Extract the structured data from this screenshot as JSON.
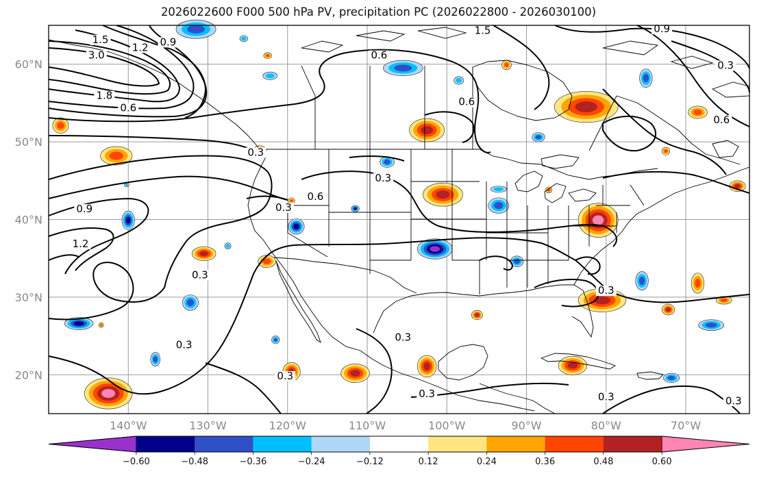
{
  "title": "2026022600 F000 500 hPa PV, precipitation PC (2026022800 - 2026030100)",
  "map": {
    "lon_range": [
      -150,
      -62
    ],
    "lat_range": [
      15,
      65
    ],
    "lat_ticks": [
      {
        "value": 60,
        "label": "60°N"
      },
      {
        "value": 50,
        "label": "50°N"
      },
      {
        "value": 40,
        "label": "40°N"
      },
      {
        "value": 30,
        "label": "30°N"
      },
      {
        "value": 20,
        "label": "20°N"
      }
    ],
    "lon_ticks": [
      {
        "value": -140,
        "label": "140°W"
      },
      {
        "value": -130,
        "label": "130°W"
      },
      {
        "value": -120,
        "label": "120°W"
      },
      {
        "value": -110,
        "label": "110°W"
      },
      {
        "value": -100,
        "label": "100°W"
      },
      {
        "value": -90,
        "label": "90°W"
      },
      {
        "value": -80,
        "label": "80°W"
      },
      {
        "value": -70,
        "label": "70°W"
      }
    ],
    "contour_labels": [
      {
        "text": "1.5",
        "lon": -143.5,
        "lat": 62.8
      },
      {
        "text": "1.2",
        "lon": -138.5,
        "lat": 61.8
      },
      {
        "text": "0.9",
        "lon": -135,
        "lat": 62.5
      },
      {
        "text": "3.0",
        "lon": -144,
        "lat": 60.8
      },
      {
        "text": "1.8",
        "lon": -143,
        "lat": 55.6
      },
      {
        "text": "0.6",
        "lon": -140,
        "lat": 54
      },
      {
        "text": "0.3",
        "lon": -124,
        "lat": 48.3
      },
      {
        "text": "0.6",
        "lon": -116.5,
        "lat": 42.6
      },
      {
        "text": "0.3",
        "lon": -120.5,
        "lat": 41.2
      },
      {
        "text": "0.9",
        "lon": -145.5,
        "lat": 41
      },
      {
        "text": "1.2",
        "lon": -146,
        "lat": 36.5
      },
      {
        "text": "0.3",
        "lon": -131,
        "lat": 32.5
      },
      {
        "text": "0.3",
        "lon": -133,
        "lat": 23.5
      },
      {
        "text": "0.3",
        "lon": -120.3,
        "lat": 19.5
      },
      {
        "text": "0.6",
        "lon": -108.5,
        "lat": 60.8
      },
      {
        "text": "1.5",
        "lon": -95.5,
        "lat": 64
      },
      {
        "text": "0.9",
        "lon": -73,
        "lat": 64.2
      },
      {
        "text": "0.3",
        "lon": -65,
        "lat": 59.5
      },
      {
        "text": "0.6",
        "lon": -97.5,
        "lat": 54.8
      },
      {
        "text": "0.3",
        "lon": -108,
        "lat": 45
      },
      {
        "text": "0.6",
        "lon": -65.5,
        "lat": 52.5
      },
      {
        "text": "0.3",
        "lon": -80,
        "lat": 30.5
      },
      {
        "text": "0.3",
        "lon": -105.5,
        "lat": 24.5
      },
      {
        "text": "0.3",
        "lon": -102.5,
        "lat": 17.2
      },
      {
        "text": "0.3",
        "lon": -80,
        "lat": 16.8
      },
      {
        "text": "0.3",
        "lon": -64,
        "lat": 16.3
      }
    ],
    "anomaly_blobs": [
      {
        "lon": -142.5,
        "lat": 17.6,
        "rlon": 3.0,
        "rlat": 2.0,
        "value": 0.6
      },
      {
        "lon": -148.5,
        "lat": 52.1,
        "rlon": 1.0,
        "rlat": 1.0,
        "value": 0.36
      },
      {
        "lon": -141.5,
        "lat": 48.2,
        "rlon": 2.0,
        "rlat": 1.2,
        "value": 0.36
      },
      {
        "lon": -131.5,
        "lat": 64.5,
        "rlon": 2.5,
        "rlat": 1.2,
        "value": -0.36
      },
      {
        "lon": -125.5,
        "lat": 63.3,
        "rlon": 0.5,
        "rlat": 0.4,
        "value": -0.24
      },
      {
        "lon": -122.5,
        "lat": 61.1,
        "rlon": 0.5,
        "rlat": 0.4,
        "value": 0.36
      },
      {
        "lon": -122.2,
        "lat": 58.5,
        "rlon": 0.9,
        "rlat": 0.5,
        "value": -0.24
      },
      {
        "lon": -105.5,
        "lat": 59.5,
        "rlon": 2.5,
        "rlat": 1.0,
        "value": -0.36
      },
      {
        "lon": -98.5,
        "lat": 57.9,
        "rlon": 0.6,
        "rlat": 0.5,
        "value": -0.24
      },
      {
        "lon": -92.5,
        "lat": 59.9,
        "rlon": 0.6,
        "rlat": 0.6,
        "value": 0.36
      },
      {
        "lon": -75,
        "lat": 58.2,
        "rlon": 0.8,
        "rlat": 1.2,
        "value": -0.36
      },
      {
        "lon": -68.5,
        "lat": 53.8,
        "rlon": 1.2,
        "rlat": 0.8,
        "value": 0.36
      },
      {
        "lon": -82.5,
        "lat": 54.5,
        "rlon": 4.0,
        "rlat": 2.0,
        "value": 0.48
      },
      {
        "lon": -102.5,
        "lat": 51.5,
        "rlon": 2.2,
        "rlat": 1.5,
        "value": 0.48
      },
      {
        "lon": -88.5,
        "lat": 50.6,
        "rlon": 0.8,
        "rlat": 0.6,
        "value": -0.36
      },
      {
        "lon": -72.5,
        "lat": 48.8,
        "rlon": 0.5,
        "rlat": 0.5,
        "value": 0.36
      },
      {
        "lon": -123.5,
        "lat": 48.9,
        "rlon": 0.8,
        "rlat": 0.6,
        "value": 0.36
      },
      {
        "lon": -107.5,
        "lat": 47.4,
        "rlon": 0.9,
        "rlat": 0.7,
        "value": -0.36
      },
      {
        "lon": -100.5,
        "lat": 43.2,
        "rlon": 2.5,
        "rlat": 1.5,
        "value": 0.48
      },
      {
        "lon": -93.5,
        "lat": 41.8,
        "rlon": 1.3,
        "rlat": 1.0,
        "value": -0.36
      },
      {
        "lon": -93.5,
        "lat": 43.9,
        "rlon": 1.0,
        "rlat": 0.4,
        "value": -0.24
      },
      {
        "lon": -63.5,
        "lat": 44.3,
        "rlon": 1.0,
        "rlat": 0.7,
        "value": 0.48
      },
      {
        "lon": -87.2,
        "lat": 43.8,
        "rlon": 0.4,
        "rlat": 0.4,
        "value": 0.36
      },
      {
        "lon": -81,
        "lat": 39.9,
        "rlon": 2.5,
        "rlat": 2.2,
        "value": 0.6
      },
      {
        "lon": -140,
        "lat": 39.9,
        "rlon": 0.8,
        "rlat": 1.2,
        "value": -0.48
      },
      {
        "lon": -146.2,
        "lat": 26.6,
        "rlon": 1.8,
        "rlat": 0.8,
        "value": -0.48
      },
      {
        "lon": -118.9,
        "lat": 39.1,
        "rlon": 1.0,
        "rlat": 1.0,
        "value": -0.48
      },
      {
        "lon": -111.5,
        "lat": 41.4,
        "rlon": 0.5,
        "rlat": 0.4,
        "value": -0.48
      },
      {
        "lon": -119.5,
        "lat": 42.4,
        "rlon": 0.4,
        "rlat": 0.4,
        "value": 0.36
      },
      {
        "lon": -101.5,
        "lat": 36.2,
        "rlon": 2.2,
        "rlat": 1.3,
        "value": -0.6
      },
      {
        "lon": -91.2,
        "lat": 34.6,
        "rlon": 0.8,
        "rlat": 0.7,
        "value": -0.36
      },
      {
        "lon": -122.6,
        "lat": 34.6,
        "rlon": 1.1,
        "rlat": 0.8,
        "value": 0.36
      },
      {
        "lon": -130.5,
        "lat": 35.6,
        "rlon": 1.5,
        "rlat": 0.9,
        "value": 0.48
      },
      {
        "lon": -132.2,
        "lat": 29.3,
        "rlon": 1.0,
        "rlat": 1.0,
        "value": -0.36
      },
      {
        "lon": -80.5,
        "lat": 29.6,
        "rlon": 3.0,
        "rlat": 1.5,
        "value": 0.48
      },
      {
        "lon": -75.5,
        "lat": 32.1,
        "rlon": 0.8,
        "rlat": 1.2,
        "value": -0.36
      },
      {
        "lon": -68.5,
        "lat": 31.8,
        "rlon": 0.8,
        "rlat": 1.3,
        "value": 0.36
      },
      {
        "lon": -65.2,
        "lat": 29.6,
        "rlon": 1.0,
        "rlat": 0.5,
        "value": 0.36
      },
      {
        "lon": -72.2,
        "lat": 28.4,
        "rlon": 0.8,
        "rlat": 0.7,
        "value": 0.48
      },
      {
        "lon": -96.2,
        "lat": 27.7,
        "rlon": 0.7,
        "rlat": 0.6,
        "value": 0.48
      },
      {
        "lon": -66.8,
        "lat": 26.4,
        "rlon": 1.6,
        "rlat": 0.7,
        "value": -0.36
      },
      {
        "lon": -143.4,
        "lat": 26.4,
        "rlon": 0.3,
        "rlat": 0.3,
        "value": 0.36
      },
      {
        "lon": -136.6,
        "lat": 22,
        "rlon": 0.6,
        "rlat": 0.9,
        "value": -0.36
      },
      {
        "lon": -121.5,
        "lat": 24.5,
        "rlon": 0.5,
        "rlat": 0.5,
        "value": -0.36
      },
      {
        "lon": -119.5,
        "lat": 20.4,
        "rlon": 1.1,
        "rlat": 1.2,
        "value": 0.48
      },
      {
        "lon": -111.5,
        "lat": 20.2,
        "rlon": 1.8,
        "rlat": 1.2,
        "value": 0.48
      },
      {
        "lon": -102.5,
        "lat": 21.1,
        "rlon": 1.2,
        "rlat": 1.4,
        "value": 0.48
      },
      {
        "lon": -84.2,
        "lat": 21.2,
        "rlon": 1.8,
        "rlat": 1.2,
        "value": 0.48
      },
      {
        "lon": -71.8,
        "lat": 19.6,
        "rlon": 1.0,
        "rlat": 0.6,
        "value": -0.36
      },
      {
        "lon": -127.5,
        "lat": 36.6,
        "rlon": 0.4,
        "rlat": 0.4,
        "value": -0.24
      },
      {
        "lon": -140.2,
        "lat": 44.5,
        "rlon": 0.3,
        "rlat": 0.3,
        "value": -0.24
      }
    ]
  },
  "colorbar": {
    "levels": [
      -0.6,
      -0.48,
      -0.36,
      -0.24,
      -0.12,
      0.12,
      0.24,
      0.36,
      0.48,
      0.6
    ],
    "labels": [
      "−0.60",
      "−0.48",
      "−0.36",
      "−0.24",
      "−0.12",
      "0.12",
      "0.24",
      "0.36",
      "0.48",
      "0.60"
    ],
    "colors": [
      "#9932cc",
      "#00008b",
      "#3050c8",
      "#00bfff",
      "#add8f7",
      "#ffffff",
      "#ffe680",
      "#ffa500",
      "#ff4500",
      "#b22222",
      "#ff85b3"
    ]
  }
}
